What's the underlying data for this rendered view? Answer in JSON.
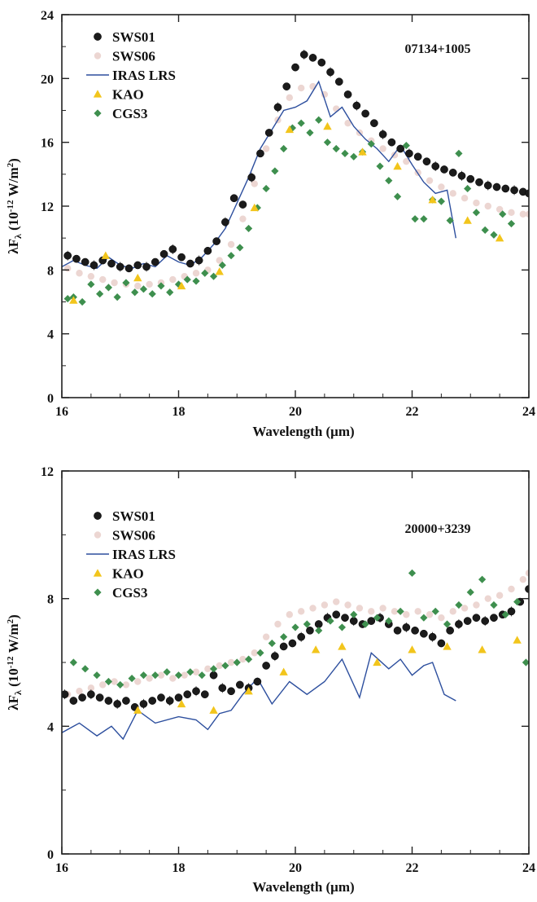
{
  "chart_data": [
    {
      "type": "scatter",
      "annotation": "07134+1005",
      "xlabel": "Wavelength (μm)",
      "ylabel": "λF",
      "ylabel_sub": "λ",
      "ylabel_unit_prefix": " (10",
      "ylabel_exp": "-12",
      "ylabel_unit_suffix": " W/m",
      "ylabel_sq": "2",
      "ylabel_close": ")",
      "xlim": [
        16,
        24
      ],
      "ylim": [
        0,
        24
      ],
      "xticks": [
        16,
        18,
        20,
        22,
        24
      ],
      "yticks": [
        0,
        4,
        8,
        12,
        16,
        20,
        24
      ],
      "grid": false,
      "legend_position": "top-left",
      "series": [
        {
          "name": "SWS01",
          "marker": "circle",
          "color": "#1b1b1b",
          "x": [
            16.1,
            16.25,
            16.4,
            16.55,
            16.7,
            16.85,
            17.0,
            17.15,
            17.3,
            17.45,
            17.6,
            17.75,
            17.9,
            18.05,
            18.2,
            18.35,
            18.5,
            18.65,
            18.8,
            18.95,
            19.1,
            19.25,
            19.4,
            19.55,
            19.7,
            19.85,
            20.0,
            20.15,
            20.3,
            20.45,
            20.6,
            20.75,
            20.9,
            21.05,
            21.2,
            21.35,
            21.5,
            21.65,
            21.8,
            21.95,
            22.1,
            22.25,
            22.4,
            22.55,
            22.7,
            22.85,
            23.0,
            23.15,
            23.3,
            23.45,
            23.6,
            23.75,
            23.9,
            24.0
          ],
          "y": [
            8.9,
            8.7,
            8.5,
            8.3,
            8.6,
            8.4,
            8.2,
            8.1,
            8.3,
            8.2,
            8.5,
            9.0,
            9.3,
            8.8,
            8.4,
            8.6,
            9.2,
            9.8,
            11.0,
            12.5,
            12.1,
            13.8,
            15.3,
            16.6,
            18.2,
            19.5,
            20.7,
            21.5,
            21.3,
            21.0,
            20.4,
            19.8,
            19.0,
            18.3,
            17.8,
            17.2,
            16.5,
            16.0,
            15.6,
            15.3,
            15.1,
            14.8,
            14.5,
            14.3,
            14.1,
            13.9,
            13.7,
            13.5,
            13.3,
            13.2,
            13.1,
            13.0,
            12.9,
            12.8
          ]
        },
        {
          "name": "SWS06",
          "marker": "circle",
          "color": "#ecd6d2",
          "x": [
            16.1,
            16.3,
            16.5,
            16.7,
            16.9,
            17.1,
            17.3,
            17.5,
            17.7,
            17.9,
            18.1,
            18.3,
            18.5,
            18.7,
            18.9,
            19.1,
            19.3,
            19.5,
            19.7,
            19.9,
            20.1,
            20.3,
            20.5,
            20.7,
            20.9,
            21.1,
            21.3,
            21.5,
            21.7,
            21.9,
            22.1,
            22.3,
            22.5,
            22.7,
            22.9,
            23.1,
            23.3,
            23.5,
            23.7,
            23.9,
            24.0
          ],
          "y": [
            8.1,
            7.8,
            7.6,
            7.4,
            7.2,
            7.1,
            7.0,
            7.1,
            7.2,
            7.4,
            7.6,
            7.8,
            8.0,
            8.6,
            9.6,
            11.2,
            13.4,
            15.6,
            17.4,
            18.8,
            19.4,
            19.5,
            19.0,
            18.1,
            17.2,
            16.6,
            16.1,
            15.6,
            15.2,
            14.8,
            14.1,
            13.6,
            13.2,
            12.8,
            12.5,
            12.2,
            12.0,
            11.8,
            11.6,
            11.5,
            11.5
          ]
        },
        {
          "name": "IRAS LRS",
          "marker": "line",
          "color": "#2d4f9e",
          "x": [
            16.0,
            16.2,
            16.4,
            16.6,
            16.8,
            17.0,
            17.2,
            17.4,
            17.6,
            17.8,
            18.0,
            18.2,
            18.4,
            18.6,
            18.8,
            19.0,
            19.2,
            19.4,
            19.6,
            19.8,
            20.0,
            20.2,
            20.4,
            20.6,
            20.8,
            21.0,
            21.2,
            21.4,
            21.6,
            21.8,
            22.0,
            22.2,
            22.4,
            22.6,
            22.75
          ],
          "y": [
            8.2,
            8.6,
            8.3,
            8.1,
            8.8,
            8.3,
            8.1,
            8.4,
            8.2,
            8.9,
            8.5,
            8.3,
            8.8,
            9.6,
            10.6,
            12.2,
            13.8,
            15.6,
            16.8,
            18.0,
            18.2,
            18.6,
            19.8,
            17.6,
            18.2,
            17.0,
            16.2,
            15.6,
            14.8,
            15.8,
            14.6,
            13.5,
            12.8,
            13.0,
            10.0
          ]
        },
        {
          "name": "KAO",
          "marker": "triangle",
          "color": "#f2c51c",
          "x": [
            16.2,
            16.75,
            17.3,
            18.05,
            18.7,
            19.3,
            19.9,
            20.55,
            21.15,
            21.75,
            22.35,
            22.95,
            23.5
          ],
          "y": [
            6.1,
            8.9,
            7.5,
            7.0,
            7.9,
            11.9,
            16.8,
            17.0,
            15.4,
            14.5,
            12.4,
            11.1,
            10.0
          ]
        },
        {
          "name": "CGS3",
          "marker": "diamond",
          "color": "#3e8f4e",
          "x": [
            16.1,
            16.2,
            16.35,
            16.5,
            16.65,
            16.8,
            16.95,
            17.1,
            17.25,
            17.4,
            17.55,
            17.7,
            17.85,
            18.0,
            18.15,
            18.3,
            18.45,
            18.6,
            18.75,
            18.9,
            19.05,
            19.2,
            19.35,
            19.5,
            19.65,
            19.8,
            19.95,
            20.1,
            20.25,
            20.4,
            20.55,
            20.7,
            20.85,
            21.0,
            21.15,
            21.3,
            21.45,
            21.6,
            21.75,
            21.9,
            22.05,
            22.2,
            22.35,
            22.5,
            22.65,
            22.8,
            22.95,
            23.1,
            23.25,
            23.4,
            23.55,
            23.7
          ],
          "y": [
            6.2,
            6.3,
            6.0,
            7.1,
            6.5,
            6.9,
            6.3,
            7.2,
            6.6,
            6.8,
            6.5,
            7.0,
            6.6,
            7.1,
            7.4,
            7.3,
            7.8,
            7.6,
            8.3,
            8.9,
            9.4,
            10.6,
            11.9,
            13.1,
            14.2,
            15.6,
            16.9,
            17.2,
            16.6,
            17.4,
            16.0,
            15.6,
            15.3,
            15.1,
            15.4,
            15.9,
            14.5,
            13.6,
            12.6,
            15.8,
            11.2,
            11.2,
            12.4,
            12.3,
            11.1,
            15.3,
            13.1,
            11.6,
            10.5,
            10.2,
            11.5,
            10.9
          ]
        }
      ]
    },
    {
      "type": "scatter",
      "annotation": "20000+3239",
      "xlabel": "Wavelength (μm)",
      "ylabel": "λF",
      "ylabel_sub": "λ",
      "ylabel_unit_prefix": " (10",
      "ylabel_exp": "-12",
      "ylabel_unit_suffix": " W/m",
      "ylabel_sq": "2",
      "ylabel_close": ")",
      "xlim": [
        16,
        24
      ],
      "ylim": [
        0,
        12
      ],
      "xticks": [
        16,
        18,
        20,
        22,
        24
      ],
      "yticks": [
        0,
        4,
        8,
        12
      ],
      "grid": false,
      "legend_position": "top-left",
      "series": [
        {
          "name": "SWS01",
          "marker": "circle",
          "color": "#1b1b1b",
          "x": [
            16.05,
            16.2,
            16.35,
            16.5,
            16.65,
            16.8,
            16.95,
            17.1,
            17.25,
            17.4,
            17.55,
            17.7,
            17.85,
            18.0,
            18.15,
            18.3,
            18.45,
            18.6,
            18.75,
            18.9,
            19.05,
            19.2,
            19.35,
            19.5,
            19.65,
            19.8,
            19.95,
            20.1,
            20.25,
            20.4,
            20.55,
            20.7,
            20.85,
            21.0,
            21.15,
            21.3,
            21.45,
            21.6,
            21.75,
            21.9,
            22.05,
            22.2,
            22.35,
            22.5,
            22.65,
            22.8,
            22.95,
            23.1,
            23.25,
            23.4,
            23.55,
            23.7,
            23.85,
            24.0
          ],
          "y": [
            5.0,
            4.8,
            4.9,
            5.0,
            4.9,
            4.8,
            4.7,
            4.8,
            4.6,
            4.7,
            4.8,
            4.9,
            4.8,
            4.9,
            5.0,
            5.1,
            5.0,
            5.6,
            5.2,
            5.1,
            5.3,
            5.2,
            5.4,
            5.9,
            6.2,
            6.5,
            6.6,
            6.8,
            7.0,
            7.2,
            7.4,
            7.5,
            7.4,
            7.3,
            7.2,
            7.3,
            7.4,
            7.2,
            7.0,
            7.1,
            7.0,
            6.9,
            6.8,
            6.6,
            7.0,
            7.2,
            7.3,
            7.4,
            7.3,
            7.4,
            7.5,
            7.6,
            7.9,
            8.3
          ]
        },
        {
          "name": "SWS06",
          "marker": "circle",
          "color": "#ecd6d2",
          "x": [
            16.1,
            16.3,
            16.5,
            16.7,
            16.9,
            17.1,
            17.3,
            17.5,
            17.7,
            17.9,
            18.1,
            18.3,
            18.5,
            18.7,
            18.9,
            19.1,
            19.3,
            19.5,
            19.7,
            19.9,
            20.1,
            20.3,
            20.5,
            20.7,
            20.9,
            21.1,
            21.3,
            21.5,
            21.7,
            21.9,
            22.1,
            22.3,
            22.5,
            22.7,
            22.9,
            23.1,
            23.3,
            23.5,
            23.7,
            23.9,
            24.0
          ],
          "y": [
            5.0,
            5.1,
            5.2,
            5.3,
            5.4,
            5.3,
            5.4,
            5.5,
            5.6,
            5.5,
            5.6,
            5.7,
            5.8,
            5.9,
            6.0,
            6.1,
            6.3,
            6.8,
            7.2,
            7.5,
            7.6,
            7.7,
            7.8,
            7.9,
            7.8,
            7.7,
            7.6,
            7.7,
            7.6,
            7.5,
            7.6,
            7.5,
            7.4,
            7.6,
            7.7,
            7.8,
            8.0,
            8.1,
            8.3,
            8.6,
            8.8
          ]
        },
        {
          "name": "IRAS LRS",
          "marker": "line",
          "color": "#2d4f9e",
          "x": [
            16.0,
            16.3,
            16.6,
            16.85,
            17.05,
            17.3,
            17.6,
            18.0,
            18.3,
            18.5,
            18.7,
            18.9,
            19.1,
            19.35,
            19.6,
            19.9,
            20.2,
            20.5,
            20.8,
            21.1,
            21.3,
            21.6,
            21.8,
            22.0,
            22.2,
            22.35,
            22.55,
            22.75
          ],
          "y": [
            3.8,
            4.1,
            3.7,
            4.0,
            3.6,
            4.5,
            4.1,
            4.3,
            4.2,
            3.9,
            4.4,
            4.5,
            5.0,
            5.5,
            4.7,
            5.4,
            5.0,
            5.4,
            6.1,
            4.9,
            6.3,
            5.8,
            6.1,
            5.6,
            5.9,
            6.0,
            5.0,
            4.8
          ]
        },
        {
          "name": "KAO",
          "marker": "triangle",
          "color": "#f2c51c",
          "x": [
            17.3,
            18.05,
            18.6,
            19.2,
            19.8,
            20.35,
            20.8,
            21.4,
            22.0,
            22.6,
            23.2,
            23.8
          ],
          "y": [
            4.5,
            4.7,
            4.5,
            5.1,
            5.7,
            6.4,
            6.5,
            6.0,
            6.4,
            6.5,
            6.4,
            6.7
          ]
        },
        {
          "name": "CGS3",
          "marker": "diamond",
          "color": "#3e8f4e",
          "x": [
            16.2,
            16.4,
            16.6,
            16.8,
            17.0,
            17.2,
            17.4,
            17.6,
            17.8,
            18.0,
            18.2,
            18.4,
            18.6,
            18.8,
            19.0,
            19.2,
            19.4,
            19.6,
            19.8,
            20.0,
            20.2,
            20.4,
            20.6,
            20.8,
            21.0,
            21.2,
            21.4,
            21.6,
            21.8,
            22.0,
            22.2,
            22.4,
            22.6,
            22.8,
            23.0,
            23.2,
            23.4,
            23.6,
            23.8,
            23.95
          ],
          "y": [
            6.0,
            5.8,
            5.6,
            5.4,
            5.3,
            5.5,
            5.6,
            5.6,
            5.7,
            5.6,
            5.7,
            5.6,
            5.8,
            5.9,
            6.0,
            6.1,
            6.3,
            6.6,
            6.8,
            7.1,
            7.2,
            7.0,
            7.3,
            7.1,
            7.5,
            7.2,
            7.4,
            7.3,
            7.6,
            8.8,
            7.4,
            7.6,
            7.2,
            7.8,
            8.2,
            8.6,
            7.8,
            7.5,
            7.9,
            6.0
          ]
        }
      ]
    }
  ]
}
